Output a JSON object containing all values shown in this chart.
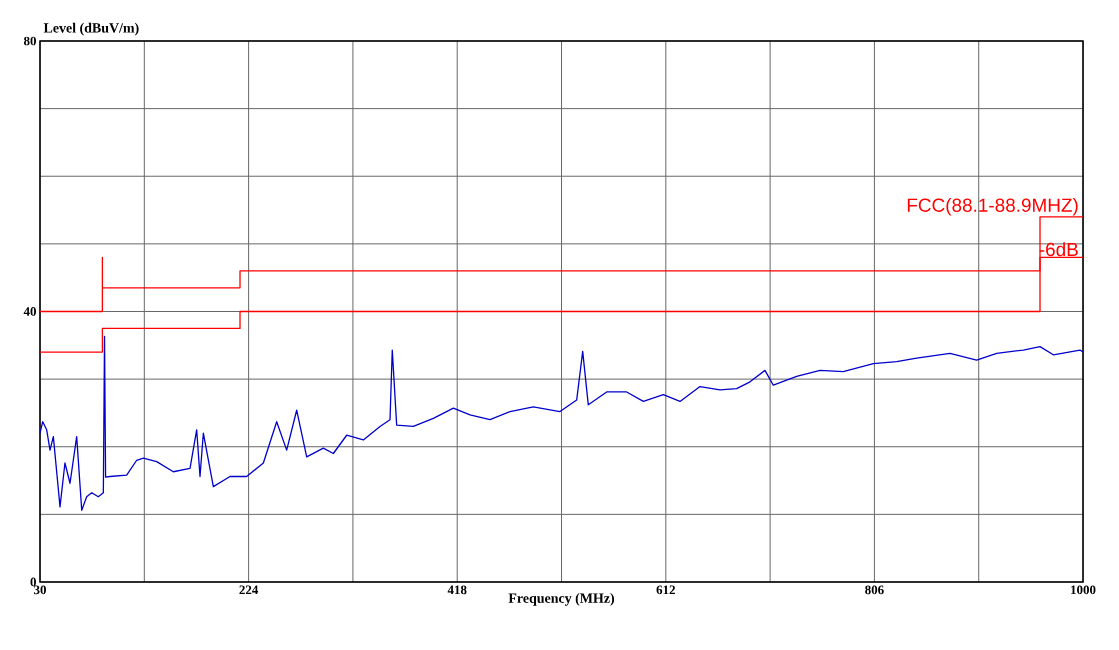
{
  "chart_data": {
    "type": "line",
    "xlabel": "Frequency (MHz)",
    "ylabel": "Level (dBuV/m)",
    "xlim": [
      30,
      1000
    ],
    "ylim": [
      0,
      80
    ],
    "xticks": [
      30,
      {
        "value": 127,
        "label": null
      },
      224,
      {
        "value": 321,
        "label": null
      },
      418,
      {
        "value": 515,
        "label": null
      },
      612,
      {
        "value": 709,
        "label": null
      },
      806,
      {
        "value": 903,
        "label": null
      },
      1000
    ],
    "yticks": [
      0,
      {
        "value": 10,
        "label": null
      },
      {
        "value": 20,
        "label": null
      },
      {
        "value": 30,
        "label": null
      },
      40,
      {
        "value": 50,
        "label": null
      },
      {
        "value": 60,
        "label": null
      },
      {
        "value": 70,
        "label": null
      },
      80
    ],
    "grid": true,
    "legend": false,
    "marker": "none",
    "line_style": "solid",
    "series": [
      {
        "name": "FCC(88.1-88.9MHZ)",
        "color": "#ff0000",
        "x": [
          30,
          88,
          88,
          88,
          216,
          216,
          960,
          960,
          1000
        ],
        "values": [
          40,
          40,
          48,
          43.5,
          43.5,
          46,
          46,
          54,
          54
        ]
      },
      {
        "name": "-6dB",
        "color": "#ff0000",
        "x": [
          30,
          88,
          88,
          216,
          216,
          960,
          960,
          1000
        ],
        "values": [
          34,
          34,
          37.5,
          37.5,
          40,
          40,
          48,
          48
        ]
      },
      {
        "color": "#0000cc",
        "x": [
          30,
          32.5,
          36.2,
          39.3,
          42.4,
          48.6,
          53.2,
          57.9,
          64.1,
          68.8,
          73.4,
          78.1,
          84.2,
          88.9,
          90,
          91,
          95.1,
          110.6,
          119.9,
          126.1,
          138.5,
          154,
          169.5,
          175.7,
          178.8,
          181.9,
          191.2,
          206.7,
          222.2,
          237.7,
          250.1,
          259.4,
          268.7,
          278,
          293.5,
          302.8,
          315.2,
          330.7,
          346.2,
          355.5,
          357.6,
          361.7,
          377.2,
          395.8,
          414.4,
          429.9,
          448.5,
          467.1,
          488.8,
          513.6,
          529.1,
          534.7,
          539.9,
          557,
          575.6,
          591.1,
          609.7,
          625.2,
          643.8,
          662.4,
          677.9,
          690.3,
          704.2,
          712,
          733.7,
          755.4,
          777,
          805,
          826.7,
          845.3,
          876.3,
          901.1,
          919.7,
          944.5,
          960,
          972.4,
          997.2,
          1000
        ],
        "values": [
          22,
          23.7,
          22.5,
          19.5,
          21.5,
          11.1,
          17.6,
          14.6,
          21.5,
          10.6,
          12.6,
          13.2,
          12.6,
          13.2,
          36.3,
          15.5,
          15.6,
          15.8,
          18.0,
          18.3,
          17.8,
          16.3,
          16.8,
          22.5,
          15.6,
          22.0,
          14.1,
          15.6,
          15.6,
          17.6,
          23.7,
          19.5,
          25.4,
          18.5,
          19.8,
          19.0,
          21.7,
          21.0,
          23.0,
          24.0,
          34.3,
          23.2,
          23.0,
          24.2,
          25.7,
          24.7,
          24.0,
          25.2,
          25.9,
          25.2,
          26.9,
          34.1,
          26.2,
          28.1,
          28.1,
          26.7,
          27.7,
          26.7,
          28.9,
          28.4,
          28.6,
          29.6,
          31.3,
          29.1,
          30.4,
          31.3,
          31.1,
          32.3,
          32.6,
          33.1,
          33.8,
          32.8,
          33.8,
          34.3,
          34.8,
          33.6,
          34.3,
          34.0
        ]
      }
    ]
  }
}
